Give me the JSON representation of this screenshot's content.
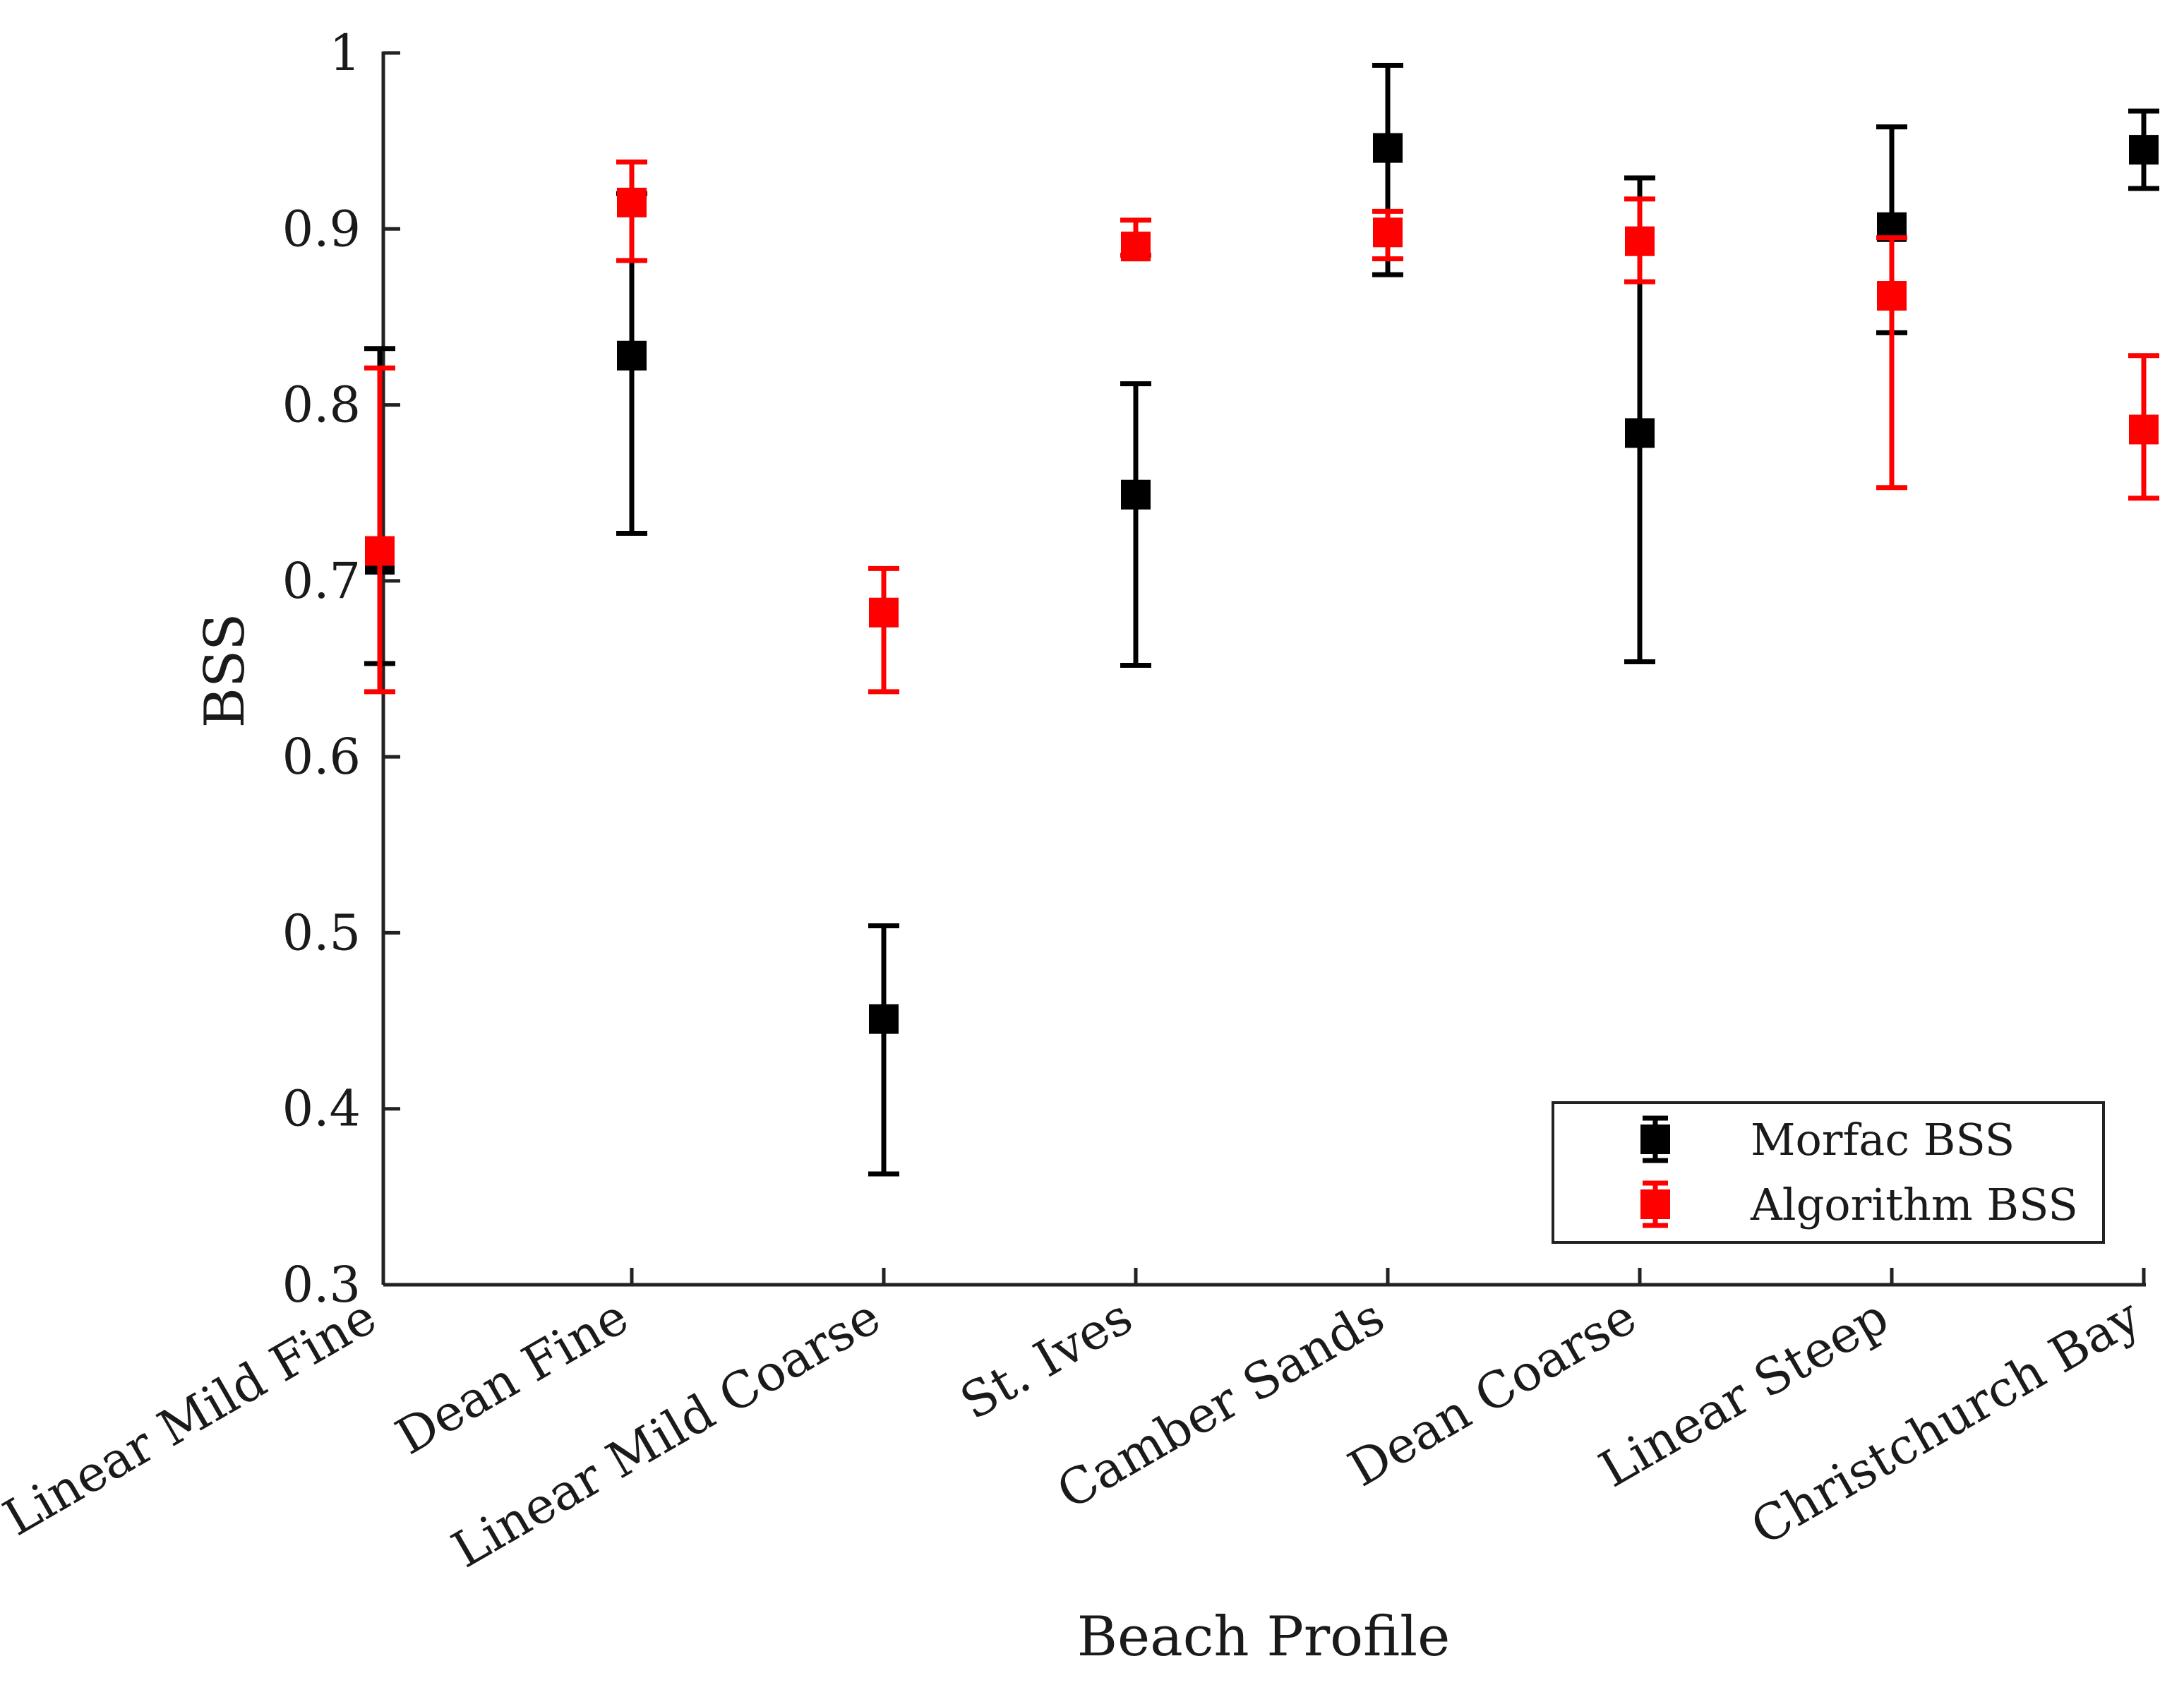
{
  "chart_data": {
    "type": "scatter",
    "title": "",
    "xlabel": "Beach Profile",
    "ylabel": "BSS",
    "ylim": [
      0.3,
      1.0
    ],
    "yticks": [
      "0.3",
      "0.4",
      "0.5",
      "0.6",
      "0.7",
      "0.8",
      "0.9",
      "1"
    ],
    "grid": false,
    "legend_position": "bottom-right",
    "categories": [
      "Linear Mild Fine",
      "Dean Fine",
      "Linear Mild Coarse",
      "St. Ives",
      "Camber Sands",
      "Dean Coarse",
      "Linear Steep",
      "Christchurch Bay"
    ],
    "series": [
      {
        "name": "Morfac BSS",
        "color": "#000000",
        "values": [
          0.712,
          0.828,
          0.451,
          0.749,
          0.946,
          0.784,
          0.901,
          0.945
        ],
        "lower": [
          0.653,
          0.727,
          0.363,
          0.652,
          0.874,
          0.654,
          0.841,
          0.923
        ],
        "upper": [
          0.832,
          0.92,
          0.504,
          0.812,
          0.993,
          0.929,
          0.958,
          0.967
        ]
      },
      {
        "name": "Algorithm BSS",
        "color": "#ff0000",
        "values": [
          0.717,
          0.915,
          0.682,
          0.89,
          0.898,
          0.893,
          0.862,
          0.786
        ],
        "lower": [
          0.637,
          0.882,
          0.637,
          0.885,
          0.883,
          0.87,
          0.753,
          0.747
        ],
        "upper": [
          0.821,
          0.938,
          0.707,
          0.905,
          0.91,
          0.917,
          0.895,
          0.828
        ]
      }
    ]
  }
}
